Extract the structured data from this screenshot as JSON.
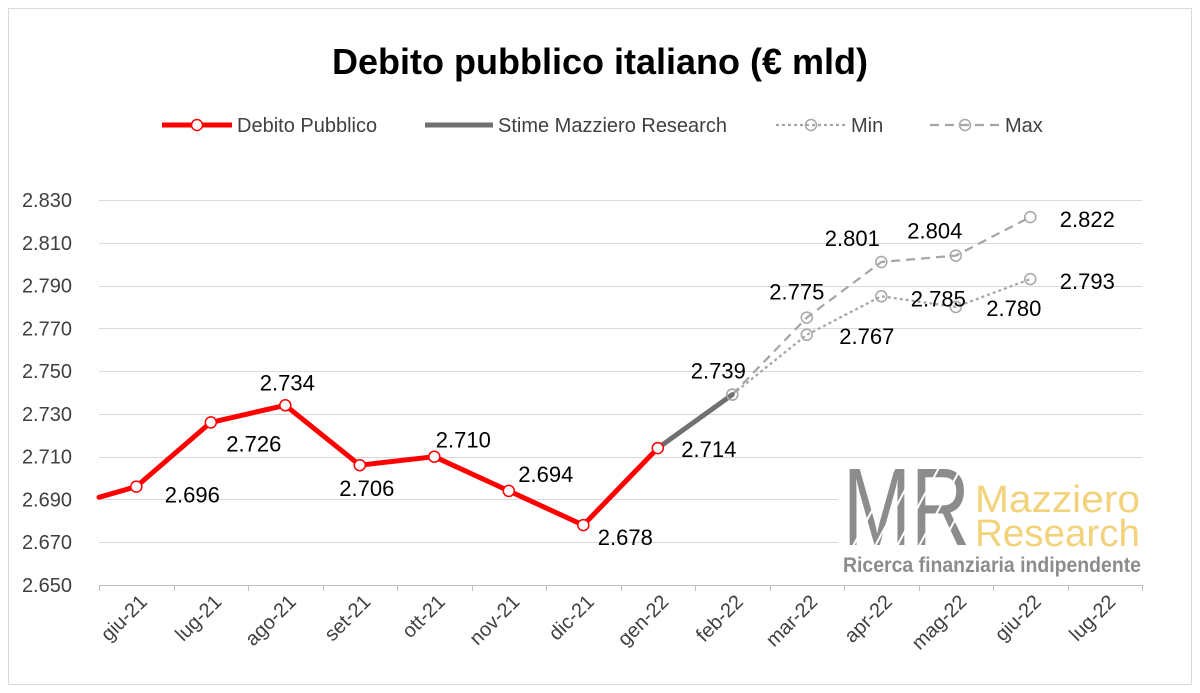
{
  "chart_data": {
    "type": "line",
    "title": "Debito pubblico italiano (€ mld)",
    "xlabel": "",
    "ylabel": "",
    "categories": [
      "giu-21",
      "lug-21",
      "ago-21",
      "set-21",
      "ott-21",
      "nov-21",
      "dic-21",
      "gen-22",
      "feb-22",
      "mar-22",
      "apr-22",
      "mag-22",
      "giu-22",
      "lug-22"
    ],
    "ylim": [
      2650,
      2830
    ],
    "yticks": [
      2650,
      2670,
      2690,
      2710,
      2730,
      2750,
      2770,
      2790,
      2810,
      2830
    ],
    "ytick_labels": [
      "2.650",
      "2.670",
      "2.690",
      "2.710",
      "2.730",
      "2.750",
      "2.770",
      "2.790",
      "2.810",
      "2.830"
    ],
    "grid": "horizontal",
    "legend_position": "top",
    "series": [
      {
        "name": "Debito Pubblico",
        "color": "#ff0000",
        "line_style": "solid",
        "marker": "circle",
        "left_edge_value": 2691,
        "values": [
          2696,
          2726,
          2734,
          2706,
          2710,
          2694,
          2678,
          2714,
          null,
          null,
          null,
          null,
          null,
          null
        ],
        "labels": [
          "2.696",
          "2.726",
          "2.734",
          "2.706",
          "2.710",
          "2.694",
          "2.678",
          "2.714",
          null,
          null,
          null,
          null,
          null,
          null
        ]
      },
      {
        "name": "Stime Mazziero Research",
        "color": "#707070",
        "line_style": "solid",
        "marker": "none",
        "values": [
          null,
          null,
          null,
          null,
          null,
          null,
          null,
          2714,
          2739,
          null,
          null,
          null,
          null,
          null
        ],
        "labels": [
          null,
          null,
          null,
          null,
          null,
          null,
          null,
          null,
          "2.739",
          null,
          null,
          null,
          null,
          null
        ]
      },
      {
        "name": "Min",
        "color": "#a6a6a6",
        "line_style": "dotted",
        "marker": "open-circle",
        "values": [
          null,
          null,
          null,
          null,
          null,
          null,
          null,
          null,
          2739,
          2767,
          2785,
          2780,
          2793,
          null
        ],
        "labels": [
          null,
          null,
          null,
          null,
          null,
          null,
          null,
          null,
          null,
          "2.767",
          "2.785",
          "2.780",
          "2.793",
          null
        ]
      },
      {
        "name": "Max",
        "color": "#a6a6a6",
        "line_style": "dashed",
        "marker": "open-circle",
        "values": [
          null,
          null,
          null,
          null,
          null,
          null,
          null,
          null,
          2739,
          2775,
          2801,
          2804,
          2822,
          null
        ],
        "labels": [
          null,
          null,
          null,
          null,
          null,
          null,
          null,
          null,
          null,
          "2.775",
          "2.801",
          "2.804",
          "2.822",
          null
        ]
      }
    ]
  },
  "logo": {
    "mark": "MR",
    "name_line1": "Mazziero",
    "name_line2": "Research",
    "tagline": "Ricerca finanziaria indipendente",
    "colors": {
      "mark": "#8c8c8c",
      "name": "#f2d27a",
      "tagline": "#8c8c8c"
    }
  }
}
